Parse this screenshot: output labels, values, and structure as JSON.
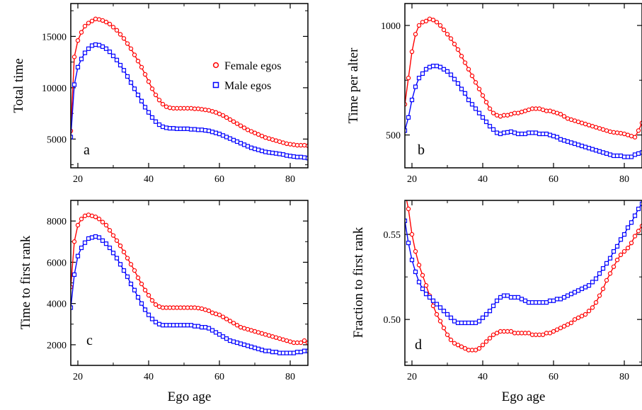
{
  "chart_data": [
    {
      "panel": "a",
      "type": "line",
      "ylabel": "Total time",
      "xlabel": "",
      "xlim": [
        18,
        85
      ],
      "ylim": [
        2200,
        18200
      ],
      "xticks": [
        20,
        40,
        60,
        80
      ],
      "yticks": [
        5000,
        10000,
        15000
      ],
      "x": [
        18,
        19,
        20,
        21,
        22,
        23,
        24,
        25,
        26,
        27,
        28,
        29,
        30,
        31,
        32,
        33,
        34,
        35,
        36,
        37,
        38,
        39,
        40,
        41,
        42,
        43,
        44,
        45,
        46,
        47,
        48,
        49,
        50,
        51,
        52,
        53,
        54,
        55,
        56,
        57,
        58,
        59,
        60,
        61,
        62,
        63,
        64,
        65,
        66,
        67,
        68,
        69,
        70,
        71,
        72,
        73,
        74,
        75,
        76,
        77,
        78,
        79,
        80,
        81,
        82,
        83,
        84,
        85
      ],
      "series": [
        {
          "name": "Female egos",
          "color": "#ff0000",
          "marker": "circle",
          "values": [
            5800,
            13000,
            14600,
            15400,
            16000,
            16300,
            16500,
            16700,
            16650,
            16550,
            16400,
            16200,
            15900,
            15600,
            15200,
            14800,
            14300,
            13800,
            13200,
            12600,
            12000,
            11300,
            10600,
            9900,
            9300,
            8800,
            8400,
            8150,
            8050,
            8000,
            8000,
            8000,
            8000,
            8000,
            8000,
            7950,
            7950,
            7900,
            7850,
            7800,
            7700,
            7600,
            7450,
            7300,
            7100,
            6900,
            6700,
            6500,
            6300,
            6100,
            5900,
            5750,
            5600,
            5450,
            5300,
            5150,
            5050,
            4950,
            4850,
            4750,
            4650,
            4550,
            4500,
            4450,
            4400,
            4400,
            4400,
            4350
          ]
        },
        {
          "name": "Male egos",
          "color": "#0000ff",
          "marker": "square",
          "values": [
            5200,
            10300,
            12000,
            12800,
            13400,
            13800,
            14100,
            14200,
            14150,
            14000,
            13800,
            13500,
            13100,
            12700,
            12200,
            11700,
            11100,
            10500,
            9900,
            9300,
            8700,
            8100,
            7600,
            7100,
            6700,
            6400,
            6200,
            6100,
            6050,
            6050,
            6000,
            6000,
            6000,
            6000,
            5950,
            5950,
            5900,
            5900,
            5850,
            5800,
            5700,
            5600,
            5500,
            5350,
            5200,
            5050,
            4900,
            4750,
            4600,
            4450,
            4300,
            4150,
            4050,
            3950,
            3850,
            3750,
            3700,
            3650,
            3600,
            3550,
            3500,
            3400,
            3350,
            3300,
            3250,
            3250,
            3200,
            3150
          ]
        }
      ]
    },
    {
      "panel": "b",
      "type": "line",
      "ylabel": "Time per alter",
      "xlabel": "",
      "xlim": [
        18,
        85
      ],
      "ylim": [
        350,
        1100
      ],
      "xticks": [
        20,
        40,
        60,
        80
      ],
      "yticks": [
        500,
        1000
      ],
      "x": [
        18,
        19,
        20,
        21,
        22,
        23,
        24,
        25,
        26,
        27,
        28,
        29,
        30,
        31,
        32,
        33,
        34,
        35,
        36,
        37,
        38,
        39,
        40,
        41,
        42,
        43,
        44,
        45,
        46,
        47,
        48,
        49,
        50,
        51,
        52,
        53,
        54,
        55,
        56,
        57,
        58,
        59,
        60,
        61,
        62,
        63,
        64,
        65,
        66,
        67,
        68,
        69,
        70,
        71,
        72,
        73,
        74,
        75,
        76,
        77,
        78,
        79,
        80,
        81,
        82,
        83,
        84,
        85
      ],
      "series": [
        {
          "name": "Female egos",
          "color": "#ff0000",
          "marker": "circle",
          "values": [
            640,
            760,
            880,
            960,
            1000,
            1015,
            1020,
            1030,
            1025,
            1015,
            1000,
            980,
            960,
            940,
            915,
            890,
            860,
            830,
            800,
            770,
            740,
            710,
            680,
            650,
            620,
            600,
            590,
            585,
            590,
            590,
            595,
            600,
            600,
            605,
            610,
            615,
            620,
            620,
            620,
            615,
            610,
            610,
            605,
            600,
            595,
            585,
            575,
            570,
            565,
            560,
            555,
            550,
            545,
            540,
            535,
            530,
            525,
            520,
            515,
            512,
            510,
            508,
            505,
            500,
            495,
            490,
            520,
            555
          ]
        },
        {
          "name": "Male egos",
          "color": "#0000ff",
          "marker": "square",
          "values": [
            520,
            580,
            660,
            720,
            760,
            780,
            800,
            810,
            815,
            815,
            810,
            800,
            790,
            775,
            755,
            735,
            710,
            690,
            660,
            640,
            620,
            600,
            580,
            560,
            540,
            525,
            510,
            505,
            510,
            512,
            515,
            510,
            505,
            505,
            505,
            510,
            510,
            510,
            505,
            505,
            505,
            500,
            495,
            490,
            480,
            475,
            470,
            465,
            460,
            455,
            450,
            445,
            440,
            435,
            430,
            425,
            420,
            415,
            410,
            405,
            405,
            405,
            400,
            400,
            400,
            410,
            415,
            420
          ]
        }
      ]
    },
    {
      "panel": "c",
      "type": "line",
      "ylabel": "Time to first rank",
      "xlabel": "Ego age",
      "xlim": [
        18,
        85
      ],
      "ylim": [
        1000,
        9000
      ],
      "xticks": [
        20,
        40,
        60,
        80
      ],
      "yticks": [
        2000,
        4000,
        6000,
        8000
      ],
      "x": [
        18,
        19,
        20,
        21,
        22,
        23,
        24,
        25,
        26,
        27,
        28,
        29,
        30,
        31,
        32,
        33,
        34,
        35,
        36,
        37,
        38,
        39,
        40,
        41,
        42,
        43,
        44,
        45,
        46,
        47,
        48,
        49,
        50,
        51,
        52,
        53,
        54,
        55,
        56,
        57,
        58,
        59,
        60,
        61,
        62,
        63,
        64,
        65,
        66,
        67,
        68,
        69,
        70,
        71,
        72,
        73,
        74,
        75,
        76,
        77,
        78,
        79,
        80,
        81,
        82,
        83,
        84,
        85
      ],
      "series": [
        {
          "name": "Female egos",
          "color": "#ff0000",
          "marker": "circle",
          "values": [
            4800,
            7000,
            7800,
            8100,
            8250,
            8300,
            8250,
            8200,
            8100,
            7950,
            7800,
            7550,
            7300,
            7050,
            6800,
            6500,
            6200,
            5900,
            5600,
            5250,
            4950,
            4650,
            4400,
            4150,
            3950,
            3850,
            3800,
            3800,
            3800,
            3800,
            3800,
            3800,
            3800,
            3800,
            3800,
            3800,
            3780,
            3750,
            3700,
            3650,
            3550,
            3500,
            3450,
            3350,
            3250,
            3150,
            3050,
            2950,
            2850,
            2800,
            2750,
            2700,
            2650,
            2600,
            2550,
            2500,
            2450,
            2400,
            2350,
            2300,
            2250,
            2200,
            2150,
            2100,
            2100,
            2100,
            2200,
            2100
          ]
        },
        {
          "name": "Male egos",
          "color": "#0000ff",
          "marker": "square",
          "values": [
            3800,
            5400,
            6300,
            6700,
            6950,
            7150,
            7200,
            7250,
            7200,
            7050,
            6900,
            6700,
            6450,
            6200,
            5900,
            5600,
            5300,
            4950,
            4650,
            4300,
            4000,
            3700,
            3450,
            3250,
            3100,
            3000,
            2950,
            2950,
            2950,
            2950,
            2950,
            2950,
            2950,
            2950,
            2950,
            2900,
            2900,
            2850,
            2850,
            2800,
            2700,
            2600,
            2500,
            2400,
            2300,
            2200,
            2150,
            2100,
            2050,
            2000,
            1950,
            1900,
            1850,
            1800,
            1750,
            1700,
            1700,
            1650,
            1650,
            1600,
            1600,
            1600,
            1600,
            1600,
            1650,
            1650,
            1700,
            1700
          ]
        }
      ]
    },
    {
      "panel": "d",
      "type": "line",
      "ylabel": "Fraction to first rank",
      "xlabel": "Ego age",
      "xlim": [
        18,
        85
      ],
      "ylim": [
        0.473,
        0.57
      ],
      "xticks": [
        20,
        40,
        60,
        80
      ],
      "yticks": [
        0.5,
        0.55
      ],
      "x": [
        18,
        19,
        20,
        21,
        22,
        23,
        24,
        25,
        26,
        27,
        28,
        29,
        30,
        31,
        32,
        33,
        34,
        35,
        36,
        37,
        38,
        39,
        40,
        41,
        42,
        43,
        44,
        45,
        46,
        47,
        48,
        49,
        50,
        51,
        52,
        53,
        54,
        55,
        56,
        57,
        58,
        59,
        60,
        61,
        62,
        63,
        64,
        65,
        66,
        67,
        68,
        69,
        70,
        71,
        72,
        73,
        74,
        75,
        76,
        77,
        78,
        79,
        80,
        81,
        82,
        83,
        84,
        85
      ],
      "series": [
        {
          "name": "Female egos",
          "color": "#ff0000",
          "marker": "circle",
          "values": [
            0.575,
            0.565,
            0.55,
            0.54,
            0.532,
            0.526,
            0.52,
            0.514,
            0.508,
            0.503,
            0.499,
            0.495,
            0.491,
            0.488,
            0.486,
            0.485,
            0.484,
            0.483,
            0.482,
            0.482,
            0.482,
            0.483,
            0.485,
            0.487,
            0.489,
            0.491,
            0.492,
            0.493,
            0.493,
            0.493,
            0.493,
            0.492,
            0.492,
            0.492,
            0.492,
            0.492,
            0.491,
            0.491,
            0.491,
            0.491,
            0.492,
            0.492,
            0.493,
            0.494,
            0.495,
            0.496,
            0.497,
            0.498,
            0.5,
            0.501,
            0.502,
            0.503,
            0.505,
            0.507,
            0.51,
            0.514,
            0.518,
            0.523,
            0.527,
            0.531,
            0.535,
            0.538,
            0.54,
            0.542,
            0.545,
            0.549,
            0.552,
            0.555
          ]
        },
        {
          "name": "Male egos",
          "color": "#0000ff",
          "marker": "square",
          "values": [
            0.558,
            0.545,
            0.535,
            0.528,
            0.522,
            0.518,
            0.515,
            0.513,
            0.511,
            0.509,
            0.507,
            0.505,
            0.503,
            0.501,
            0.499,
            0.498,
            0.498,
            0.498,
            0.498,
            0.498,
            0.498,
            0.499,
            0.501,
            0.503,
            0.505,
            0.508,
            0.511,
            0.513,
            0.514,
            0.514,
            0.513,
            0.513,
            0.513,
            0.512,
            0.511,
            0.51,
            0.51,
            0.51,
            0.51,
            0.51,
            0.51,
            0.511,
            0.511,
            0.512,
            0.512,
            0.513,
            0.514,
            0.515,
            0.516,
            0.517,
            0.518,
            0.519,
            0.52,
            0.522,
            0.524,
            0.527,
            0.53,
            0.533,
            0.536,
            0.54,
            0.543,
            0.547,
            0.55,
            0.554,
            0.557,
            0.561,
            0.565,
            0.568
          ]
        }
      ]
    }
  ],
  "legend": {
    "entries": [
      {
        "label": "Female egos",
        "color": "#ff0000",
        "marker": "circle"
      },
      {
        "label": "Male egos",
        "color": "#0000ff",
        "marker": "square"
      }
    ]
  }
}
